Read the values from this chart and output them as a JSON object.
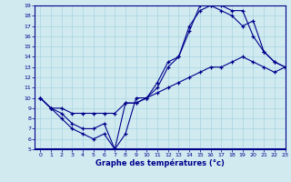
{
  "xlabel": "Graphe des températures (°c)",
  "xlim": [
    -0.5,
    23
  ],
  "ylim": [
    5,
    19
  ],
  "yticks": [
    5,
    6,
    7,
    8,
    9,
    10,
    11,
    12,
    13,
    14,
    15,
    16,
    17,
    18,
    19
  ],
  "xticks": [
    0,
    1,
    2,
    3,
    4,
    5,
    6,
    7,
    8,
    9,
    10,
    11,
    12,
    13,
    14,
    15,
    16,
    17,
    18,
    19,
    20,
    21,
    22,
    23
  ],
  "background_color": "#d0eaf0",
  "plot_bg_color": "#d0eaf0",
  "line_color": "#00008b",
  "grid_color": "#a8d4e0",
  "axis_bar_color": "#00008b",
  "lines": [
    {
      "x": [
        0,
        1,
        2,
        3,
        4,
        5,
        6,
        7,
        8,
        9,
        10,
        11,
        12,
        13,
        14,
        15,
        16,
        17,
        18,
        19,
        20,
        21,
        22,
        23
      ],
      "y": [
        10,
        9,
        8,
        7,
        6.5,
        6.0,
        6.5,
        5.0,
        6.5,
        10.0,
        10.0,
        11.5,
        13.5,
        14.0,
        16.5,
        19.0,
        19.0,
        19.0,
        18.5,
        18.5,
        16.0,
        14.5,
        13.5,
        13.0
      ]
    },
    {
      "x": [
        0,
        1,
        2,
        3,
        4,
        5,
        6,
        7,
        8,
        9,
        10,
        11,
        12,
        13,
        14,
        15,
        16,
        17,
        18,
        19,
        20,
        21,
        22,
        23
      ],
      "y": [
        10,
        9,
        8.5,
        7.5,
        7.0,
        7.0,
        7.5,
        5.0,
        9.5,
        9.5,
        10.0,
        11.0,
        13.0,
        14.0,
        17.0,
        18.5,
        19.0,
        18.5,
        18.0,
        17.0,
        17.5,
        14.5,
        13.5,
        13.0
      ]
    },
    {
      "x": [
        0,
        1,
        2,
        3,
        4,
        5,
        6,
        7,
        8,
        9,
        10,
        11,
        12,
        13,
        14,
        15,
        16,
        17,
        18,
        19,
        20,
        21,
        22,
        23
      ],
      "y": [
        10,
        9,
        9.0,
        8.5,
        8.5,
        8.5,
        8.5,
        8.5,
        9.5,
        9.5,
        10.0,
        10.5,
        11.0,
        11.5,
        12.0,
        12.5,
        13.0,
        13.0,
        13.5,
        14.0,
        13.5,
        13.0,
        12.5,
        13.0
      ]
    }
  ]
}
